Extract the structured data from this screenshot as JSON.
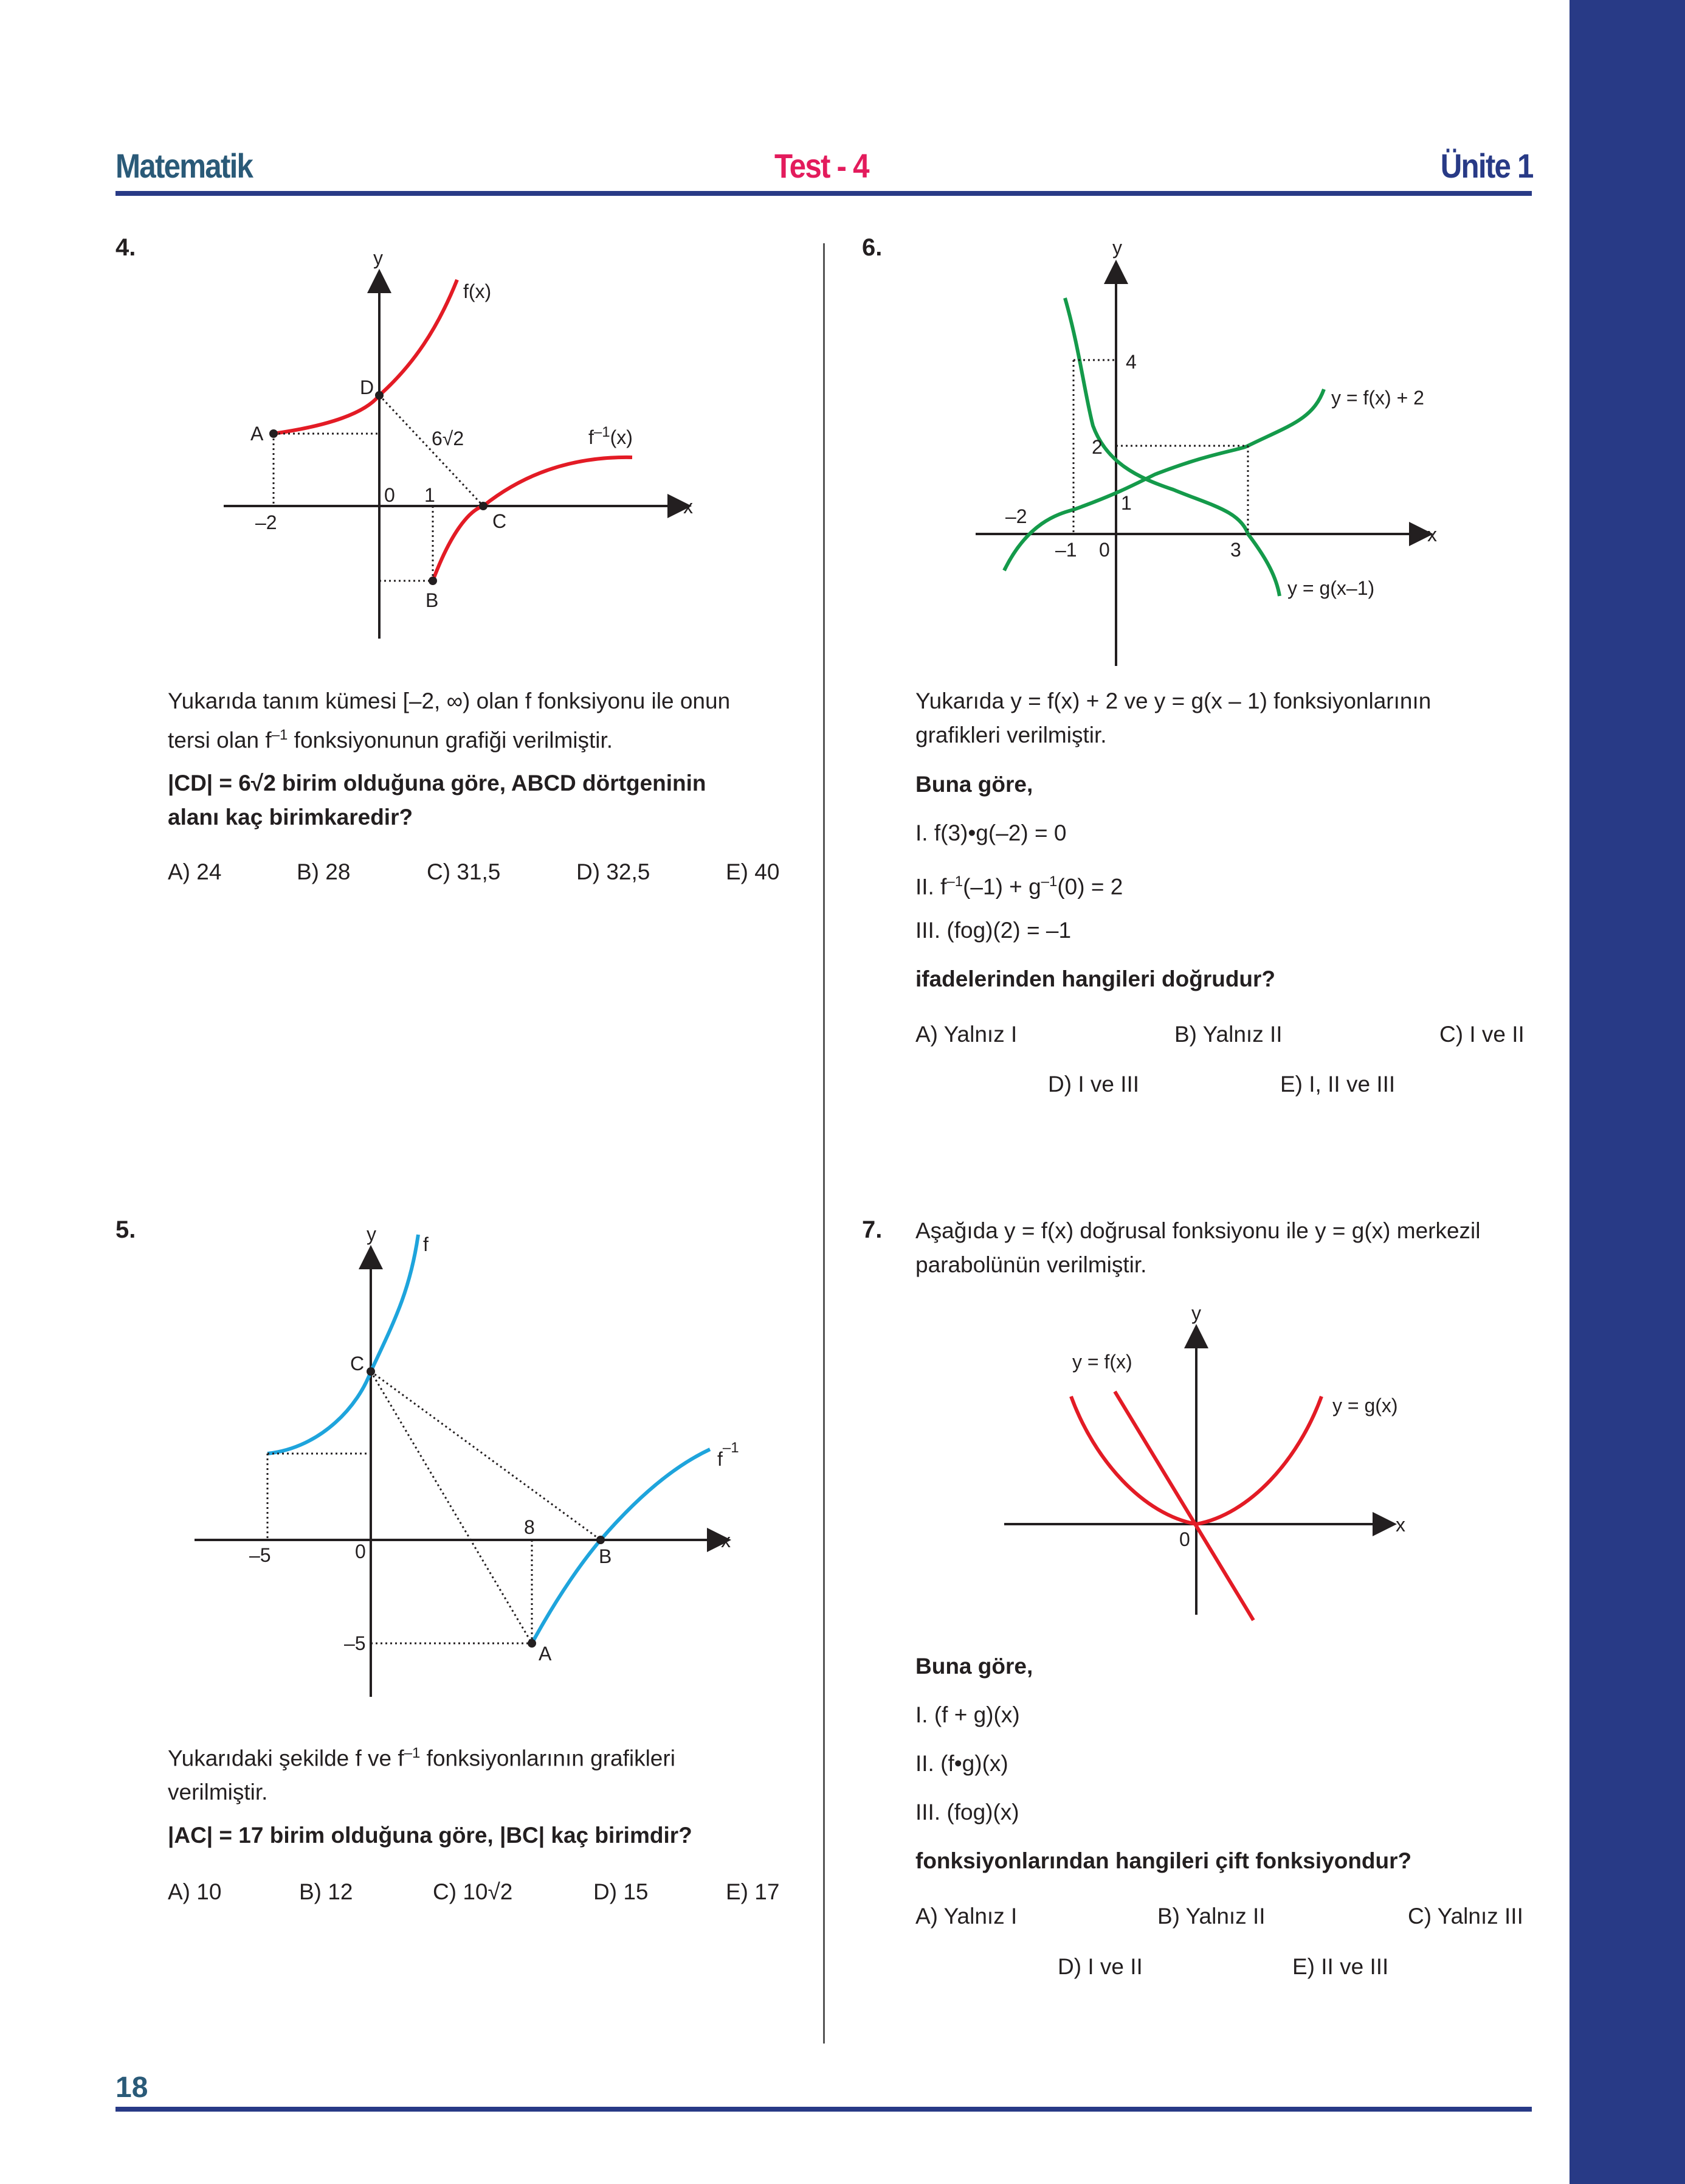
{
  "header": {
    "subject": "Matematik",
    "test": "Test - 4",
    "unit": "Ünite 1",
    "page": "18"
  },
  "colors": {
    "brand": "#283a86",
    "red": "#e31b25",
    "green": "#149a4a",
    "blue": "#1ea4dc",
    "test_pink": "#e31b5c"
  },
  "q4": {
    "number": "4.",
    "graph": {
      "y": "y",
      "x": "x",
      "f": "f(x)",
      "finv": "f",
      "finv_sup": "–1",
      "finv_tail": "(x)",
      "A": "A",
      "B": "B",
      "C": "C",
      "D": "D",
      "seg": "6√2",
      "t_m2": "–2",
      "t_0": "0",
      "t_1": "1"
    },
    "text1": "Yukarıda tanım kümesi [–2, ∞) olan f fonksiyonu ile onun",
    "text2a": "tersi olan f",
    "text2sup": "–1",
    "text2b": " fonksiyonunun grafiği verilmiştir.",
    "bold1": "|CD| = 6√2 birim olduğuna göre, ABCD dörtgeninin",
    "bold2": "alanı kaç birimkaredir?",
    "answers": [
      "A) 24",
      "B) 28",
      "C) 31,5",
      "D) 32,5",
      "E) 40"
    ]
  },
  "q5": {
    "number": "5.",
    "graph": {
      "y": "y",
      "x": "x",
      "f": "f",
      "finv": "f",
      "finv_sup": "–1",
      "A": "A",
      "B": "B",
      "C": "C",
      "t_m5x": "–5",
      "t_0": "0",
      "t_8": "8",
      "t_m5y": "–5"
    },
    "text1a": "Yukarıdaki şekilde f ve f",
    "text1sup": "–1",
    "text1b": " fonksiyonlarının grafikleri",
    "text2": "verilmiştir.",
    "bold1": "|AC| = 17 birim olduğuna göre, |BC| kaç birimdir?",
    "answers": [
      "A) 10",
      "B) 12",
      "C) 10√2",
      "D) 15",
      "E) 17"
    ]
  },
  "q6": {
    "number": "6.",
    "graph": {
      "y": "y",
      "x": "x",
      "f_label": "y = f(x) + 2",
      "g_label": "y = g(x–1)",
      "t_4": "4",
      "t_2": "2",
      "t_1": "1",
      "t_m2": "–2",
      "t_m1": "–1",
      "t_0": "0",
      "t_3": "3"
    },
    "text1": "Yukarıda y = f(x) + 2 ve y = g(x – 1) fonksiyonlarının",
    "text2": "grafikleri verilmiştir.",
    "bold1": "Buna göre,",
    "s1": "I.   f(3)•g(–2) = 0",
    "s2a": "II.  f",
    "s2sup1": "–1",
    "s2b": "(–1) + g",
    "s2sup2": "–1",
    "s2c": "(0) = 2",
    "s3": "III.  (fog)(2) = –1",
    "bold2": "ifadelerinden hangileri doğrudur?",
    "answers": [
      "A) Yalnız I",
      "B) Yalnız II",
      "C) I ve II",
      "D) I ve III",
      "E) I, II ve III"
    ]
  },
  "q7": {
    "number": "7.",
    "text1": "Aşağıda y = f(x) doğrusal fonksiyonu ile y = g(x) merkezil",
    "text2": "parabolünün verilmiştir.",
    "graph": {
      "y": "y",
      "x": "x",
      "f_label": "y = f(x)",
      "g_label": "y = g(x)",
      "t_0": "0"
    },
    "bold1": "Buna göre,",
    "s1": "I.    (f + g)(x)",
    "s2": "II.   (f•g)(x)",
    "s3": "III.  (fog)(x)",
    "bold2": "fonksiyonlarından hangileri çift fonksiyondur?",
    "answers": [
      "A) Yalnız I",
      "B) Yalnız II",
      "C) Yalnız III",
      "D) I ve II",
      "E) II ve III"
    ]
  }
}
